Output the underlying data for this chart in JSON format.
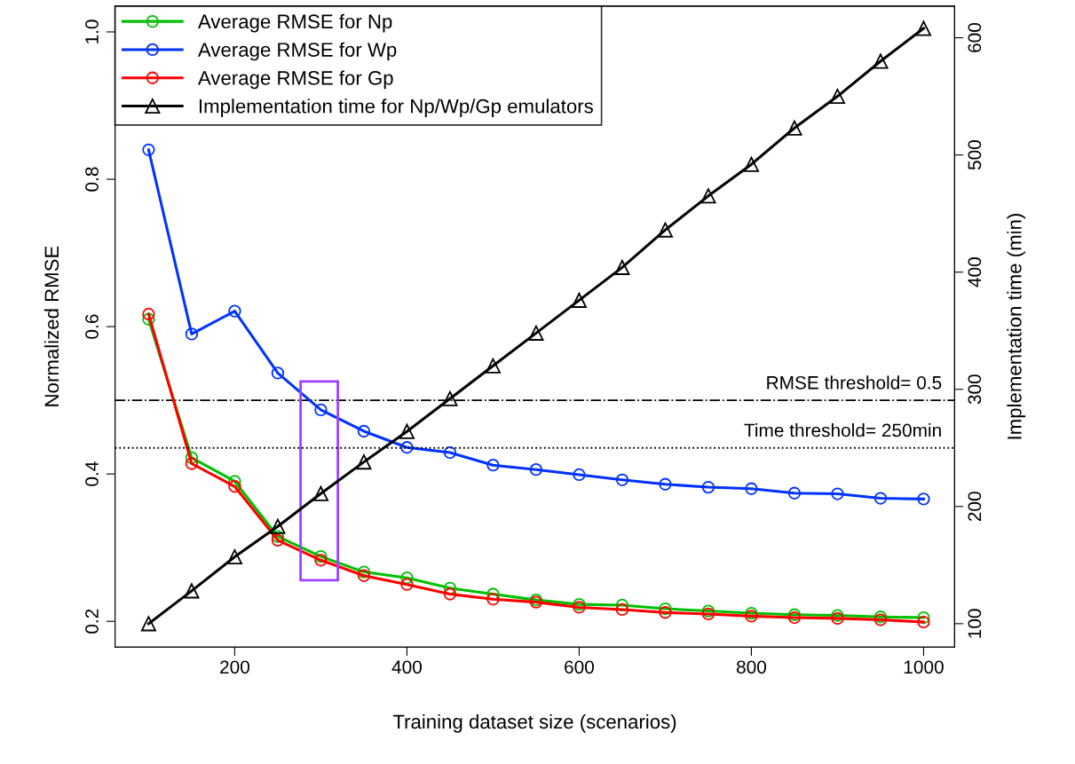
{
  "chart_data": {
    "type": "line",
    "xlabel": "Training dataset size (scenarios)",
    "ylabel": "Normalized RMSE",
    "y2label": "Implementation time (min)",
    "x": [
      100,
      150,
      200,
      250,
      300,
      350,
      400,
      450,
      500,
      550,
      600,
      650,
      700,
      750,
      800,
      850,
      900,
      950,
      1000
    ],
    "series": [
      {
        "name": "Average RMSE for Np",
        "color": "#00c000",
        "marker": "circle",
        "values": [
          0.61,
          0.422,
          0.39,
          0.315,
          0.288,
          0.267,
          0.259,
          0.245,
          0.237,
          0.229,
          0.223,
          0.222,
          0.217,
          0.214,
          0.211,
          0.209,
          0.208,
          0.206,
          0.205
        ]
      },
      {
        "name": "Average RMSE for Wp",
        "color": "#0033ff",
        "marker": "circle",
        "values": [
          0.84,
          0.59,
          0.621,
          0.537,
          0.487,
          0.458,
          0.436,
          0.429,
          0.412,
          0.406,
          0.399,
          0.392,
          0.386,
          0.382,
          0.38,
          0.374,
          0.373,
          0.367,
          0.366
        ]
      },
      {
        "name": "Average RMSE for Gp",
        "color": "#ff0000",
        "marker": "circle",
        "values": [
          0.617,
          0.414,
          0.383,
          0.31,
          0.283,
          0.262,
          0.25,
          0.237,
          0.23,
          0.226,
          0.219,
          0.216,
          0.212,
          0.21,
          0.207,
          0.205,
          0.204,
          0.202,
          0.199
        ]
      },
      {
        "name": "Implementation time for Np/Wp/Gp emulators",
        "color": "#000000",
        "marker": "triangle",
        "axis": "y2",
        "values": [
          100,
          128,
          157,
          183,
          211,
          238,
          264,
          292,
          320,
          348,
          376,
          404,
          436,
          465,
          492,
          523,
          550,
          580,
          608
        ]
      }
    ],
    "xlim": [
      61,
      1036
    ],
    "xticks": [
      200,
      400,
      600,
      800,
      1000
    ],
    "ylim": [
      0.165,
      1.035
    ],
    "yticks": [
      0.2,
      0.4,
      0.6,
      0.8,
      {
        "value": 1.0,
        "label": "1.0"
      }
    ],
    "y2lim": [
      80,
      627
    ],
    "y2ticks": [
      100,
      200,
      300,
      400,
      500,
      600
    ],
    "ref_lines": [
      {
        "axis": "y",
        "value": 0.5,
        "label": "RMSE threshold= 0.5",
        "color": "#000000",
        "line_style": "dashdot"
      },
      {
        "axis": "y2",
        "value": 250,
        "label": "Time threshold= 250min",
        "color": "#000000",
        "line_style": "dotted"
      }
    ],
    "legend": "top left",
    "grid": false,
    "line_style": "solid"
  }
}
